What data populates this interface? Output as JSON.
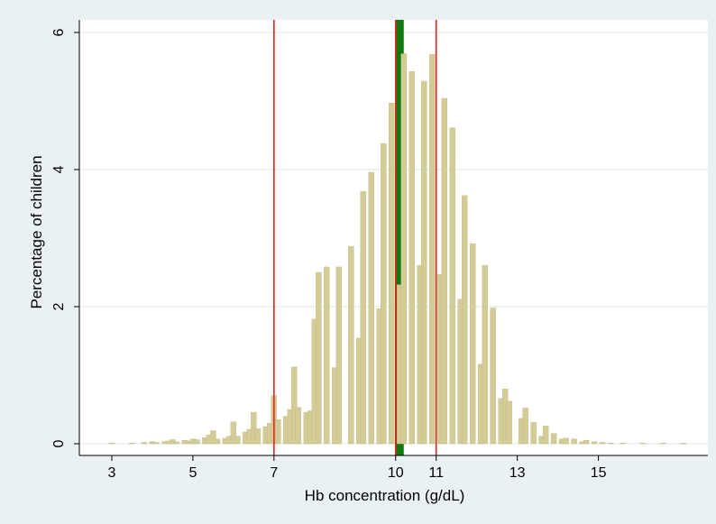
{
  "chart_data": {
    "type": "bar",
    "xlabel": "Hb concentration (g/dL)",
    "ylabel": "Percentage of children",
    "xlim": [
      2.2,
      17.7
    ],
    "ylim": [
      0,
      6.15
    ],
    "x_ticks": [
      3,
      5,
      7,
      10,
      11,
      13,
      15
    ],
    "y_ticks": [
      0,
      2,
      4,
      6
    ],
    "grid": true,
    "colors": {
      "bars": "#d4cc96",
      "bar_edge": "#c4b880",
      "threshold_lines": "#e8201a",
      "mean_band": "#0f7a0f",
      "plot_background": "#ffffff",
      "outer_background": "#eaf1f4",
      "grid": "#e5eaee"
    },
    "thresholds": [
      7,
      10,
      11
    ],
    "mean_band": [
      10.0,
      10.2
    ],
    "bars": [
      {
        "x": 3.0,
        "y": 0.01
      },
      {
        "x": 3.5,
        "y": 0.01
      },
      {
        "x": 3.8,
        "y": 0.02
      },
      {
        "x": 4.0,
        "y": 0.03
      },
      {
        "x": 4.1,
        "y": 0.02
      },
      {
        "x": 4.3,
        "y": 0.03
      },
      {
        "x": 4.4,
        "y": 0.04
      },
      {
        "x": 4.5,
        "y": 0.06
      },
      {
        "x": 4.6,
        "y": 0.03
      },
      {
        "x": 4.8,
        "y": 0.05
      },
      {
        "x": 4.9,
        "y": 0.04
      },
      {
        "x": 5.0,
        "y": 0.07
      },
      {
        "x": 5.1,
        "y": 0.06
      },
      {
        "x": 5.3,
        "y": 0.09
      },
      {
        "x": 5.4,
        "y": 0.13
      },
      {
        "x": 5.5,
        "y": 0.19
      },
      {
        "x": 5.6,
        "y": 0.07
      },
      {
        "x": 5.8,
        "y": 0.08
      },
      {
        "x": 5.9,
        "y": 0.11
      },
      {
        "x": 6.0,
        "y": 0.32
      },
      {
        "x": 6.1,
        "y": 0.11
      },
      {
        "x": 6.3,
        "y": 0.17
      },
      {
        "x": 6.4,
        "y": 0.21
      },
      {
        "x": 6.5,
        "y": 0.46
      },
      {
        "x": 6.6,
        "y": 0.22
      },
      {
        "x": 6.8,
        "y": 0.25
      },
      {
        "x": 6.9,
        "y": 0.3
      },
      {
        "x": 7.0,
        "y": 0.7
      },
      {
        "x": 7.1,
        "y": 0.35
      },
      {
        "x": 7.3,
        "y": 0.4
      },
      {
        "x": 7.4,
        "y": 0.5
      },
      {
        "x": 7.5,
        "y": 1.12
      },
      {
        "x": 7.6,
        "y": 0.53
      },
      {
        "x": 7.8,
        "y": 0.46
      },
      {
        "x": 7.9,
        "y": 0.48
      },
      {
        "x": 8.0,
        "y": 1.82
      },
      {
        "x": 8.1,
        "y": 2.5
      },
      {
        "x": 8.3,
        "y": 2.58
      },
      {
        "x": 8.5,
        "y": 1.11
      },
      {
        "x": 8.6,
        "y": 2.58
      },
      {
        "x": 8.9,
        "y": 2.88
      },
      {
        "x": 9.1,
        "y": 1.54
      },
      {
        "x": 9.2,
        "y": 3.68
      },
      {
        "x": 9.4,
        "y": 3.96
      },
      {
        "x": 9.6,
        "y": 1.97
      },
      {
        "x": 9.7,
        "y": 4.38
      },
      {
        "x": 9.9,
        "y": 4.97
      },
      {
        "x": 10.1,
        "y": 2.32
      },
      {
        "x": 10.2,
        "y": 5.69
      },
      {
        "x": 10.4,
        "y": 5.43
      },
      {
        "x": 10.6,
        "y": 2.6
      },
      {
        "x": 10.7,
        "y": 5.29
      },
      {
        "x": 10.9,
        "y": 5.68
      },
      {
        "x": 11.1,
        "y": 2.47
      },
      {
        "x": 11.2,
        "y": 5.04
      },
      {
        "x": 11.4,
        "y": 4.61
      },
      {
        "x": 11.6,
        "y": 2.11
      },
      {
        "x": 11.7,
        "y": 3.62
      },
      {
        "x": 11.9,
        "y": 2.92
      },
      {
        "x": 12.1,
        "y": 1.16
      },
      {
        "x": 12.2,
        "y": 2.6
      },
      {
        "x": 12.4,
        "y": 1.98
      },
      {
        "x": 12.6,
        "y": 0.66
      },
      {
        "x": 12.7,
        "y": 0.8
      },
      {
        "x": 12.8,
        "y": 0.62
      },
      {
        "x": 13.1,
        "y": 0.37
      },
      {
        "x": 13.2,
        "y": 0.52
      },
      {
        "x": 13.4,
        "y": 0.31
      },
      {
        "x": 13.6,
        "y": 0.11
      },
      {
        "x": 13.7,
        "y": 0.26
      },
      {
        "x": 13.9,
        "y": 0.15
      },
      {
        "x": 14.1,
        "y": 0.07
      },
      {
        "x": 14.2,
        "y": 0.08
      },
      {
        "x": 14.4,
        "y": 0.07
      },
      {
        "x": 14.6,
        "y": 0.03
      },
      {
        "x": 14.7,
        "y": 0.05
      },
      {
        "x": 14.9,
        "y": 0.03
      },
      {
        "x": 15.1,
        "y": 0.02
      },
      {
        "x": 15.3,
        "y": 0.01
      },
      {
        "x": 15.6,
        "y": 0.01
      },
      {
        "x": 16.1,
        "y": 0.01
      },
      {
        "x": 16.6,
        "y": 0.01
      },
      {
        "x": 17.1,
        "y": 0.01
      }
    ]
  }
}
